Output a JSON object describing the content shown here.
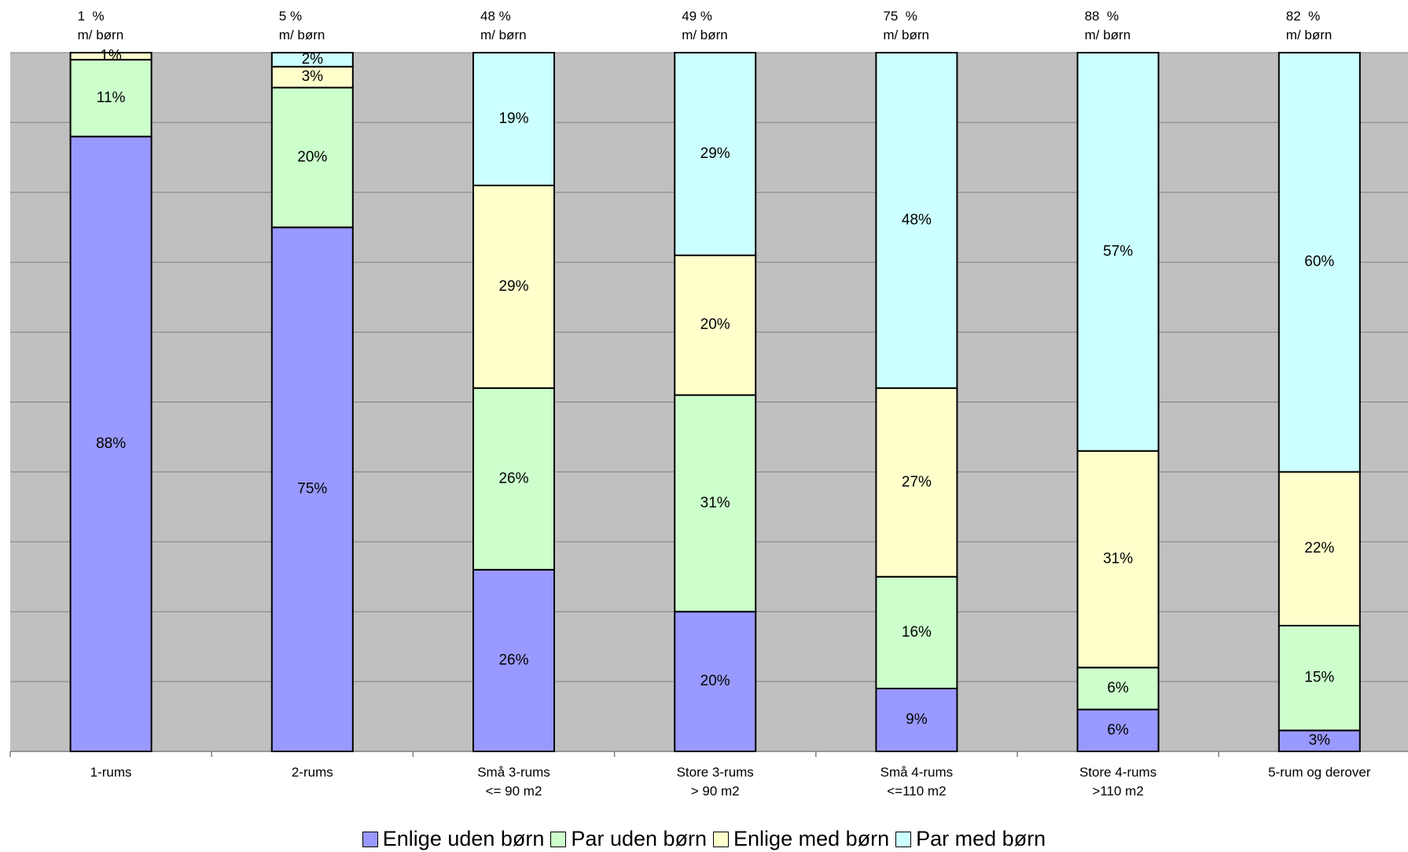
{
  "chart_data": {
    "type": "stacked_bar",
    "categories": [
      "1-rums",
      "2-rums",
      "Små 3-rums\n<= 90 m2",
      "Store 3-rums\n> 90 m2",
      "Små 4-rums\n<=110 m2",
      "Store 4-rums\n>110 m2",
      "5-rum og derover"
    ],
    "annotations": [
      "1  %\nm/ børn",
      "5 %\nm/ børn",
      "48 %\nm/ børn",
      "49 %\nm/ børn",
      "75  %\nm/ børn",
      "88  %\nm/ børn",
      "82  %\nm/ børn"
    ],
    "series": [
      {
        "name": "Enlige uden børn",
        "color": "#9999ff",
        "values": [
          88,
          75,
          26,
          20,
          9,
          6,
          3
        ],
        "value_labels": [
          "88%",
          "75%",
          "26%",
          "20%",
          "9%",
          "6%",
          "3%"
        ]
      },
      {
        "name": "Par uden børn",
        "color": "#ccffcc",
        "values": [
          11,
          20,
          26,
          31,
          16,
          6,
          15
        ],
        "value_labels": [
          "11%",
          "20%",
          "26%",
          "31%",
          "16%",
          "6%",
          "15%"
        ]
      },
      {
        "name": "Enlige med børn",
        "color": "#ffffcc",
        "values": [
          1,
          3,
          29,
          20,
          27,
          31,
          22
        ],
        "value_labels": [
          "1%",
          "3%",
          "29%",
          "20%",
          "27%",
          "31%",
          "22%"
        ]
      },
      {
        "name": "Par med børn",
        "color": "#ccffff",
        "values": [
          0,
          2,
          19,
          29,
          48,
          57,
          60
        ],
        "value_labels": [
          null,
          "2%",
          "19%",
          "29%",
          "48%",
          "57%",
          "60%"
        ]
      }
    ],
    "ylim": [
      0,
      100
    ],
    "yticks": [
      0,
      10,
      20,
      30,
      40,
      50,
      60,
      70,
      80,
      90,
      100
    ],
    "grid": true,
    "legend": "bottom"
  }
}
